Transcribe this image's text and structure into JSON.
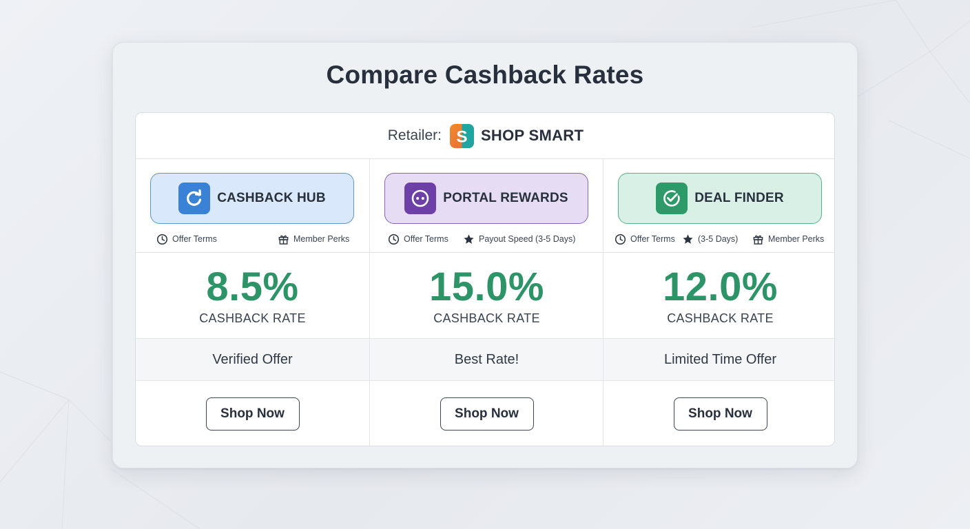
{
  "page": {
    "title": "Compare Cashback Rates"
  },
  "retailer": {
    "label": "Retailer:",
    "name": "SHOP SMART",
    "logo_icon": "shop-smart-logo-icon"
  },
  "colors": {
    "rate_green": "#2d9468",
    "blue_accent": "#3a82d6",
    "purple_accent": "#6d40a8",
    "green_accent": "#2e9a6a"
  },
  "portals": [
    {
      "name": "CASHBACK HUB",
      "icon": "refresh-icon",
      "features": [
        {
          "label": "Offer Terms",
          "icon": "clock-icon"
        },
        {
          "label": "Member Perks",
          "icon": "gift-icon"
        }
      ],
      "rate": "8.5%",
      "rate_label": "CASHBACK RATE",
      "tag": "Verified Offer",
      "button": "Shop Now"
    },
    {
      "name": "PORTAL REWARDS",
      "icon": "dots-icon",
      "features": [
        {
          "label": "Offer Terms",
          "icon": "clock-icon"
        },
        {
          "label": "Payout Speed (3-5 Days)",
          "icon": "star-icon"
        }
      ],
      "rate": "15.0%",
      "rate_label": "CASHBACK RATE",
      "tag": "Best Rate!",
      "button": "Shop Now"
    },
    {
      "name": "DEAL FINDER",
      "icon": "check-circle-icon",
      "features": [
        {
          "label": "Offer Terms",
          "icon": "clock-icon"
        },
        {
          "label": "(3-5 Days)",
          "icon": "star-icon"
        },
        {
          "label": "Member Perks",
          "icon": "gift-icon"
        }
      ],
      "rate": "12.0%",
      "rate_label": "CASHBACK RATE",
      "tag": "Limited Time Offer",
      "button": "Shop Now"
    }
  ]
}
